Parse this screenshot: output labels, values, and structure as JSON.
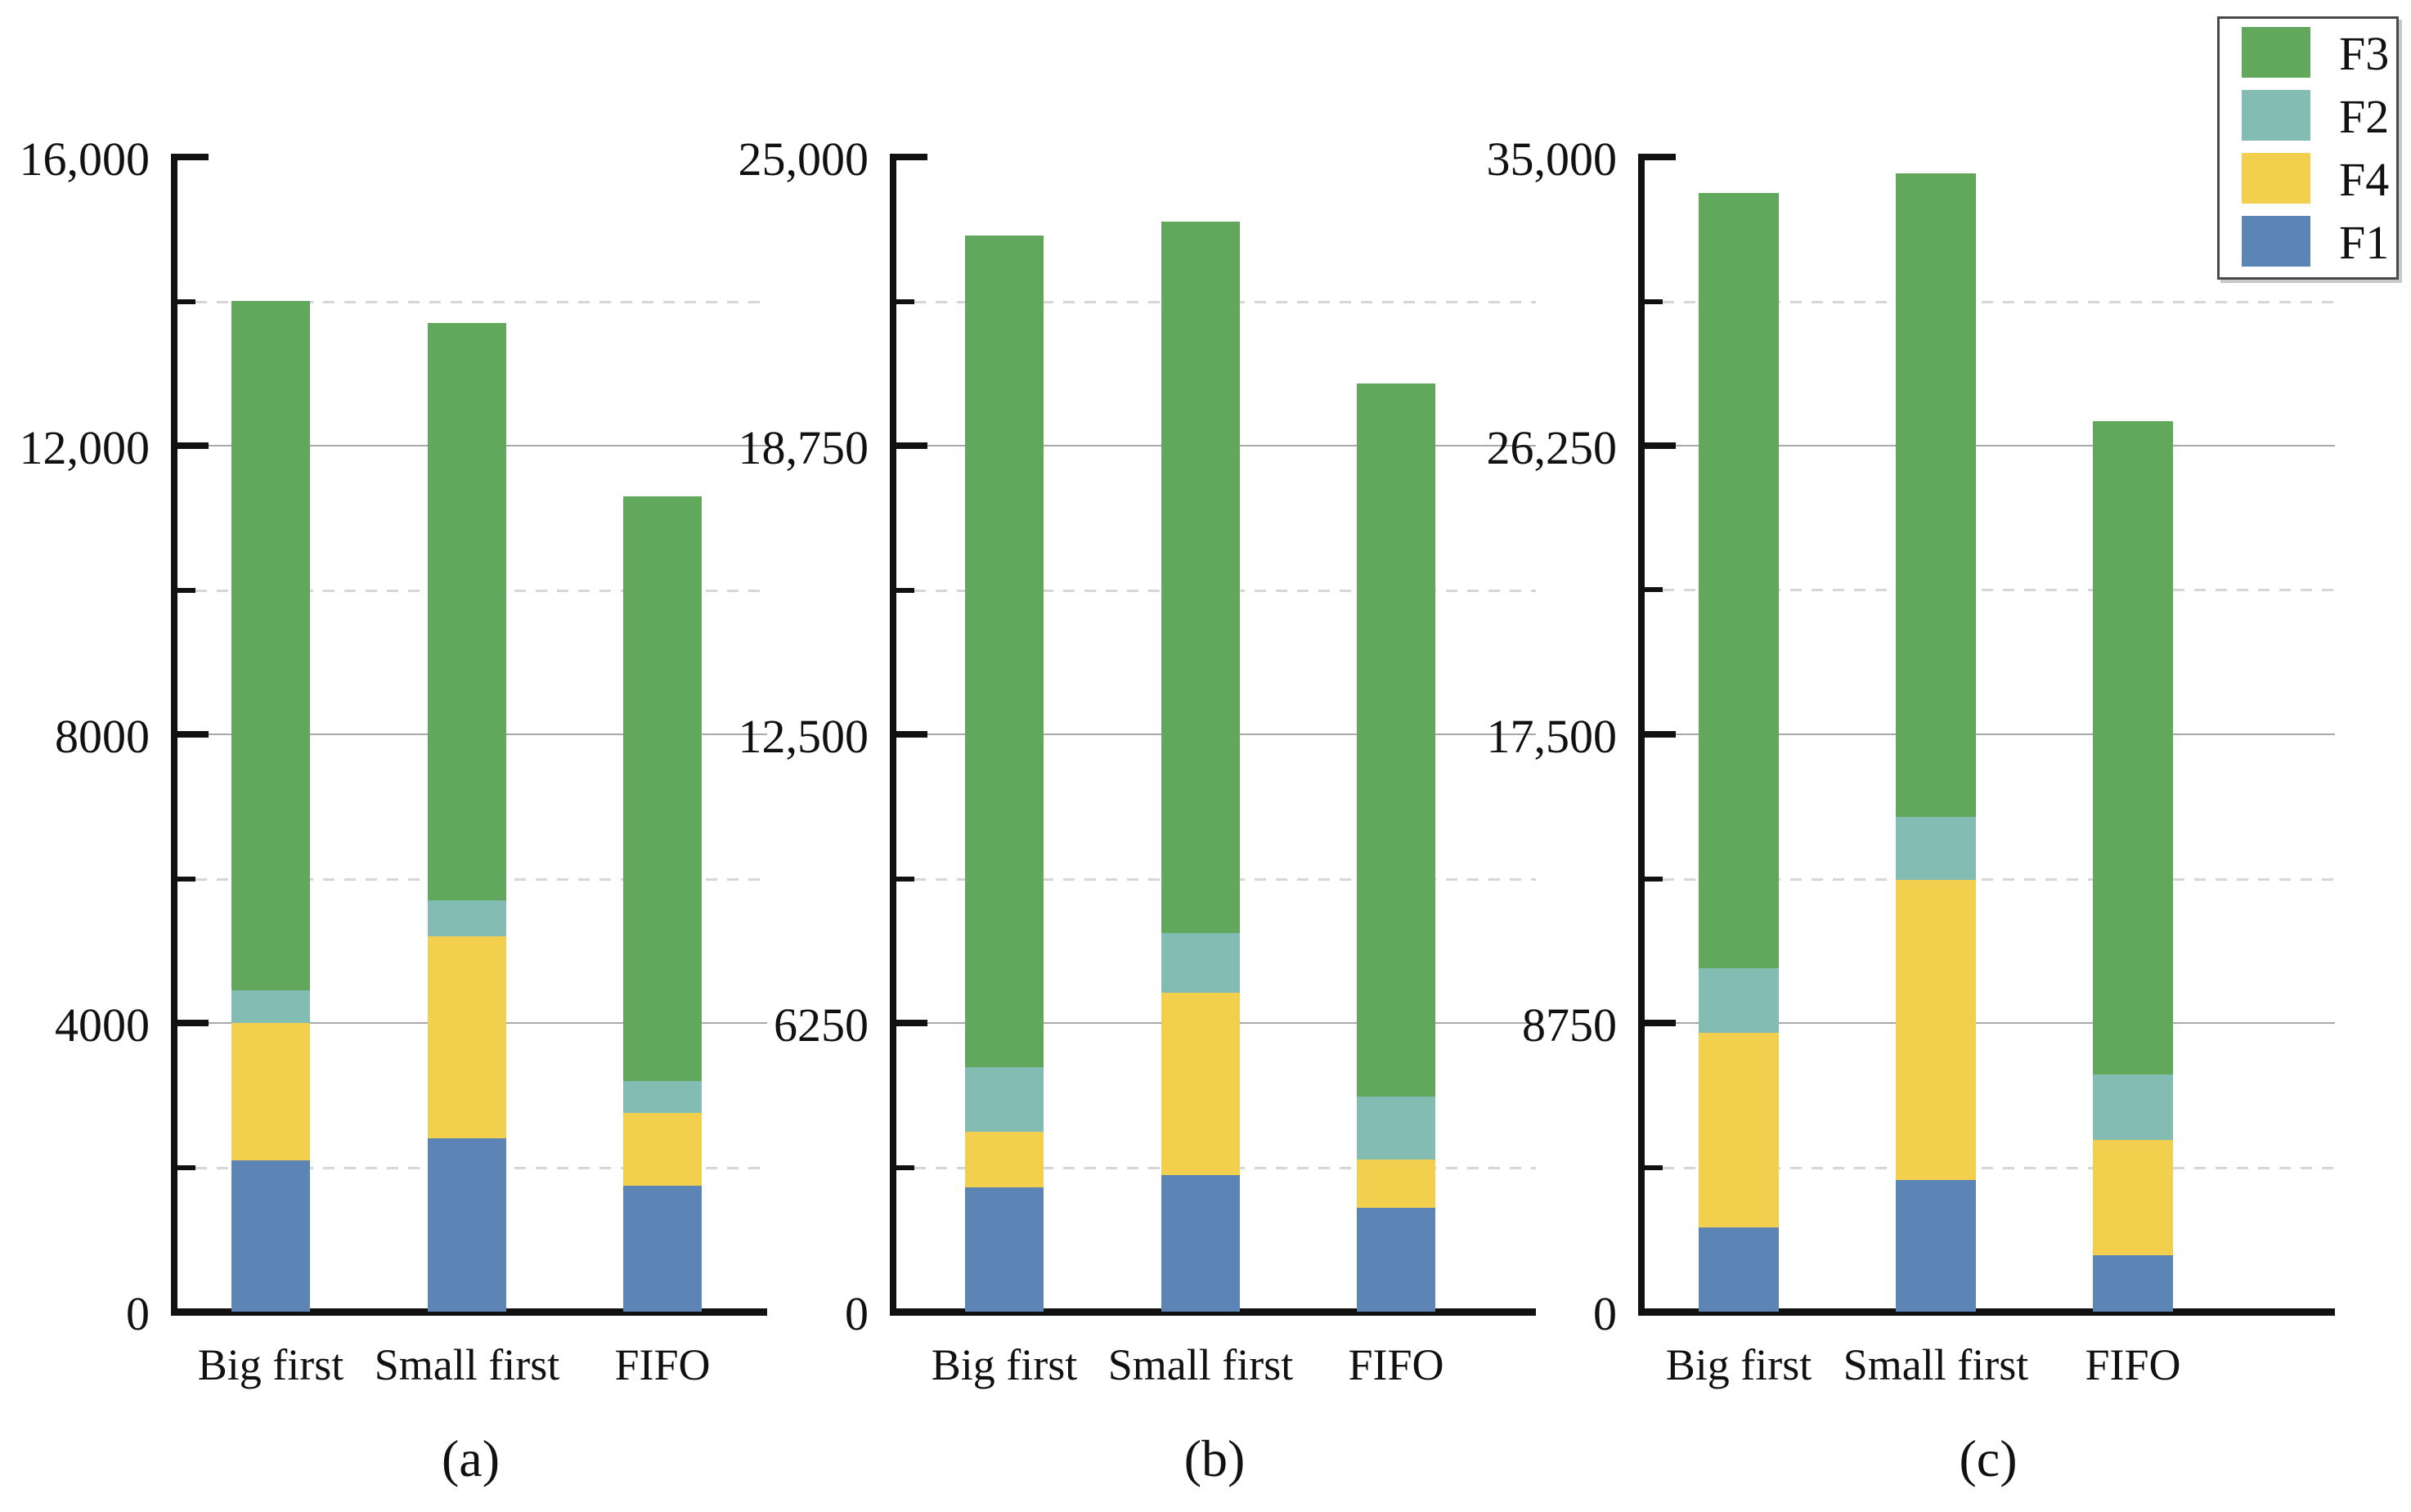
{
  "figure": {
    "kind": "three stacked bar subplots",
    "captions": [
      "(a)",
      "(b)",
      "(c)"
    ]
  },
  "legend": {
    "position": "top-right",
    "items": [
      {
        "label": "F3",
        "color": "#62a85c"
      },
      {
        "label": "F2",
        "color": "#82bcb2"
      },
      {
        "label": "F4",
        "color": "#f2d04e"
      },
      {
        "label": "F1",
        "color": "#5c85b5"
      }
    ]
  },
  "series_colors": {
    "F1": "#5c85b5",
    "F2": "#82bcb2",
    "F3": "#62a85c",
    "F4": "#f2d04e"
  },
  "chart_data": [
    {
      "type": "bar",
      "stacked": true,
      "caption": "(a)",
      "categories": [
        "Big first",
        "Small first",
        "FIFO"
      ],
      "series": [
        {
          "name": "F1",
          "values": [
            2100,
            2400,
            1750
          ]
        },
        {
          "name": "F4",
          "values": [
            1900,
            2800,
            1000
          ]
        },
        {
          "name": "F2",
          "values": [
            450,
            500,
            450
          ]
        },
        {
          "name": "F3",
          "values": [
            9550,
            8000,
            8100
          ]
        }
      ],
      "totals": [
        14000,
        13700,
        11300
      ],
      "ylim": [
        0,
        16000
      ],
      "ticks": [
        {
          "value": 16000,
          "label": "16,000"
        },
        {
          "value": 12000,
          "label": "12,000"
        },
        {
          "value": 8000,
          "label": "8000"
        },
        {
          "value": 4000,
          "label": "4000"
        },
        {
          "value": 0,
          "label": "0"
        }
      ],
      "minor_gridlines": [
        14000,
        10000,
        6000,
        2000
      ],
      "grid": "major solid, minor dashed",
      "xlabel": "",
      "ylabel": ""
    },
    {
      "type": "bar",
      "stacked": true,
      "caption": "(b)",
      "categories": [
        "Big first",
        "Small first",
        "FIFO"
      ],
      "series": [
        {
          "name": "F1",
          "values": [
            2700,
            2950,
            2250
          ]
        },
        {
          "name": "F4",
          "values": [
            1200,
            3950,
            1050
          ]
        },
        {
          "name": "F2",
          "values": [
            1400,
            1300,
            1350
          ]
        },
        {
          "name": "F3",
          "values": [
            18000,
            15400,
            15450
          ]
        }
      ],
      "totals": [
        23300,
        23600,
        20100
      ],
      "ylim": [
        0,
        25000
      ],
      "ticks": [
        {
          "value": 25000,
          "label": "25,000"
        },
        {
          "value": 18750,
          "label": "18,750"
        },
        {
          "value": 12500,
          "label": "12,500"
        },
        {
          "value": 6250,
          "label": "6250"
        },
        {
          "value": 0,
          "label": "0"
        }
      ],
      "minor_gridlines": [
        21875,
        15625,
        9375,
        3125
      ],
      "grid": "major solid, minor dashed",
      "xlabel": "",
      "ylabel": ""
    },
    {
      "type": "bar",
      "stacked": true,
      "caption": "(c)",
      "categories": [
        "Big first",
        "Small first",
        "FIFO"
      ],
      "series": [
        {
          "name": "F1",
          "values": [
            2550,
            4000,
            1700
          ]
        },
        {
          "name": "F4",
          "values": [
            5900,
            9100,
            3500
          ]
        },
        {
          "name": "F2",
          "values": [
            1950,
            1900,
            2000
          ]
        },
        {
          "name": "F3",
          "values": [
            23500,
            19500,
            19800
          ]
        }
      ],
      "totals": [
        33900,
        34500,
        27000
      ],
      "ylim": [
        0,
        35000
      ],
      "ticks": [
        {
          "value": 35000,
          "label": "35,000"
        },
        {
          "value": 26250,
          "label": "26,250"
        },
        {
          "value": 17500,
          "label": "17,500"
        },
        {
          "value": 8750,
          "label": "8750"
        },
        {
          "value": 0,
          "label": "0"
        }
      ],
      "minor_gridlines": [
        30625,
        21875,
        13125,
        4375
      ],
      "grid": "major solid, minor dashed",
      "xlabel": "",
      "ylabel": ""
    }
  ]
}
